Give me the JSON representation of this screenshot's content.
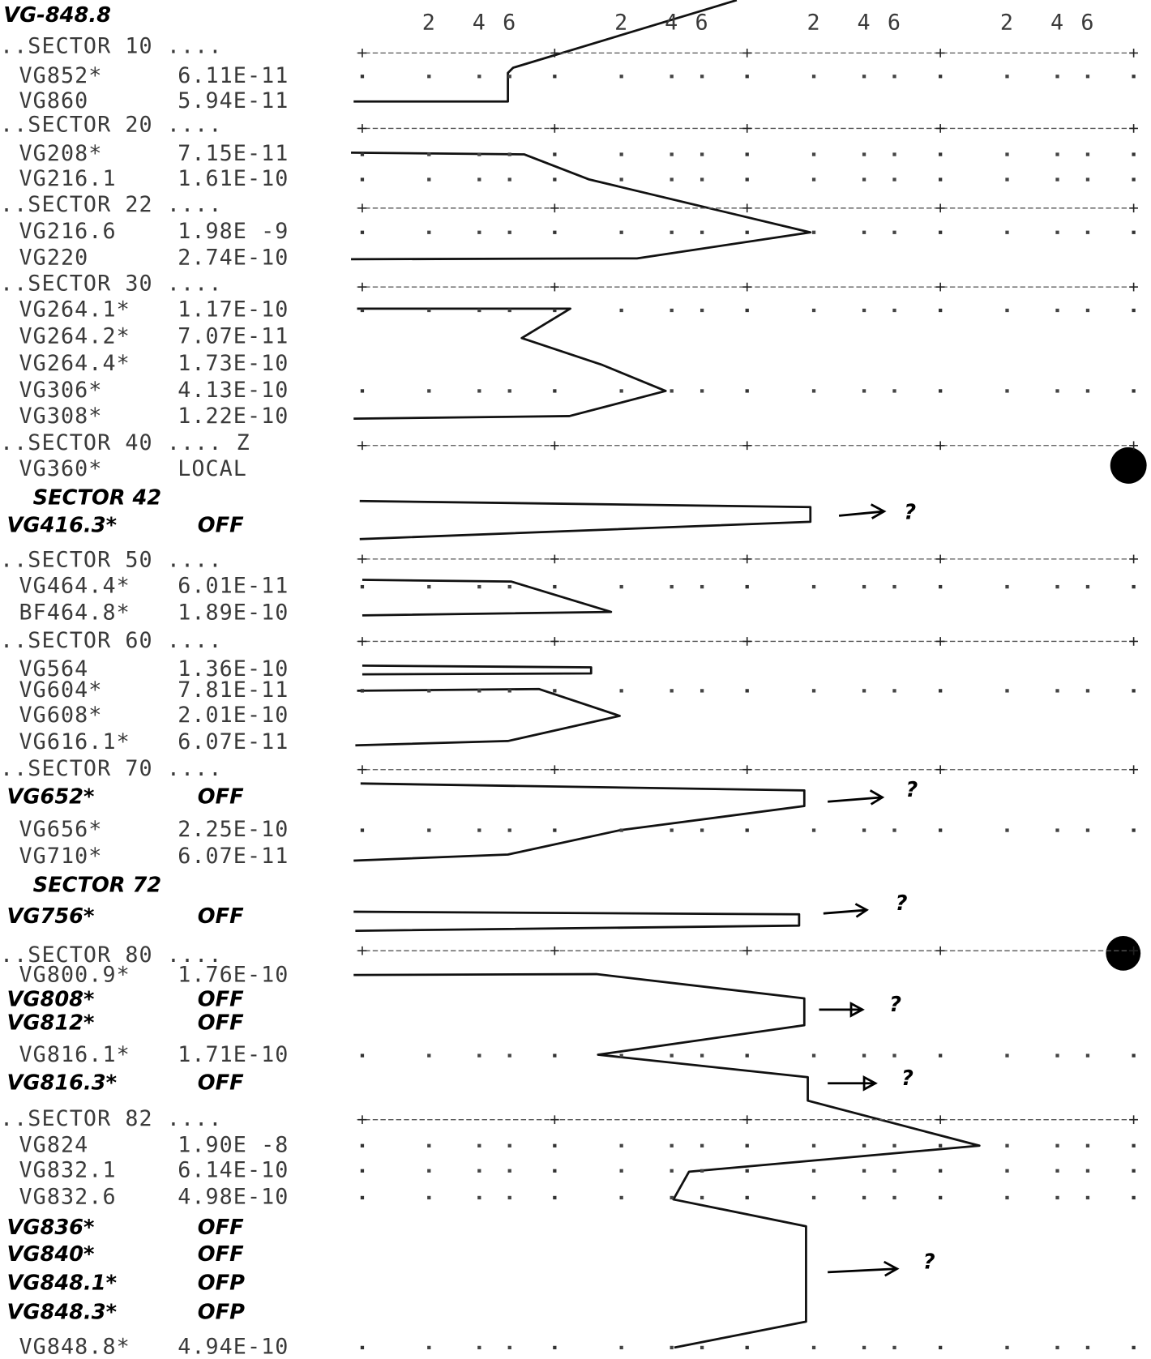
{
  "header": {
    "title": "VG-848.8"
  },
  "scale": [
    [
      "2",
      "4",
      "6"
    ],
    [
      "2",
      "4",
      "6"
    ],
    [
      "2",
      "4",
      "6"
    ],
    [
      "2",
      "4",
      "6"
    ]
  ],
  "rows": [
    {
      "text": "..SECTOR 10 ...."
    },
    {
      "label": "VG852*",
      "value": "6.11E-11"
    },
    {
      "label": "VG860",
      "value": "5.94E-11"
    },
    {
      "text": "..SECTOR 20 ...."
    },
    {
      "label": "VG208*",
      "value": "7.15E-11"
    },
    {
      "label": "VG216.1",
      "value": "1.61E-10"
    },
    {
      "text": "..SECTOR 22 ...."
    },
    {
      "label": "VG216.6",
      "value": "1.98E -9"
    },
    {
      "label": "VG220",
      "value": "2.74E-10"
    },
    {
      "text": "..SECTOR 30 ...."
    },
    {
      "label": "VG264.1*",
      "value": "1.17E-10"
    },
    {
      "label": "VG264.2*",
      "value": "7.07E-11"
    },
    {
      "label": "VG264.4*",
      "value": "1.73E-10"
    },
    {
      "label": "VG306*",
      "value": "4.13E-10"
    },
    {
      "label": "VG308*",
      "value": "1.22E-10"
    },
    {
      "text": "..SECTOR 40 .... Z"
    },
    {
      "label": "VG360*",
      "value": "LOCAL"
    },
    {
      "text": "SECTOR 42",
      "handwritten": true
    },
    {
      "label": "VG416.3*",
      "value": "OFF",
      "handwritten": true
    },
    {
      "text": "..SECTOR 50 ...."
    },
    {
      "label": "VG464.4*",
      "value": "6.01E-11"
    },
    {
      "label": "BF464.8*",
      "value": "1.89E-10"
    },
    {
      "text": "..SECTOR 60 ...."
    },
    {
      "label": "VG564",
      "value": "1.36E-10"
    },
    {
      "label": "VG604*",
      "value": "7.81E-11"
    },
    {
      "label": "VG608*",
      "value": "2.01E-10"
    },
    {
      "label": "VG616.1*",
      "value": "6.07E-11"
    },
    {
      "text": "..SECTOR 70 ...."
    },
    {
      "label": "VG652*",
      "value": "OFF",
      "handwritten": true
    },
    {
      "label": "VG656*",
      "value": "2.25E-10"
    },
    {
      "label": "VG710*",
      "value": "6.07E-11"
    },
    {
      "text": "SECTOR 72",
      "handwritten": true
    },
    {
      "label": "VG756*",
      "value": "OFF",
      "handwritten": true
    },
    {
      "text": "..SECTOR 80 ...."
    },
    {
      "label": "VG800.9*",
      "value": "1.76E-10"
    },
    {
      "label": "VG808*",
      "value": "OFF",
      "handwritten": true
    },
    {
      "label": "VG812*",
      "value": "OFF",
      "handwritten": true
    },
    {
      "label": "VG816.1*",
      "value": "1.71E-10"
    },
    {
      "label": "VG816.3*",
      "value": "OFF",
      "handwritten": true
    },
    {
      "text": "..SECTOR 82 ...."
    },
    {
      "label": "VG824",
      "value": "1.90E -8"
    },
    {
      "label": "VG832.1",
      "value": "6.14E-10"
    },
    {
      "label": "VG832.6",
      "value": "4.98E-10"
    },
    {
      "label": "VG836*",
      "value": "OFF",
      "handwritten": true
    },
    {
      "label": "VG840*",
      "value": "OFF",
      "handwritten": true
    },
    {
      "label": "VG848.1*",
      "value": "OFP",
      "handwritten": true
    },
    {
      "label": "VG848.3*",
      "value": "OFP",
      "handwritten": true
    },
    {
      "label": "VG848.8*",
      "value": "4.94E-10"
    }
  ],
  "annotations": [
    "?",
    "?",
    "?",
    "?",
    "?",
    "?"
  ]
}
